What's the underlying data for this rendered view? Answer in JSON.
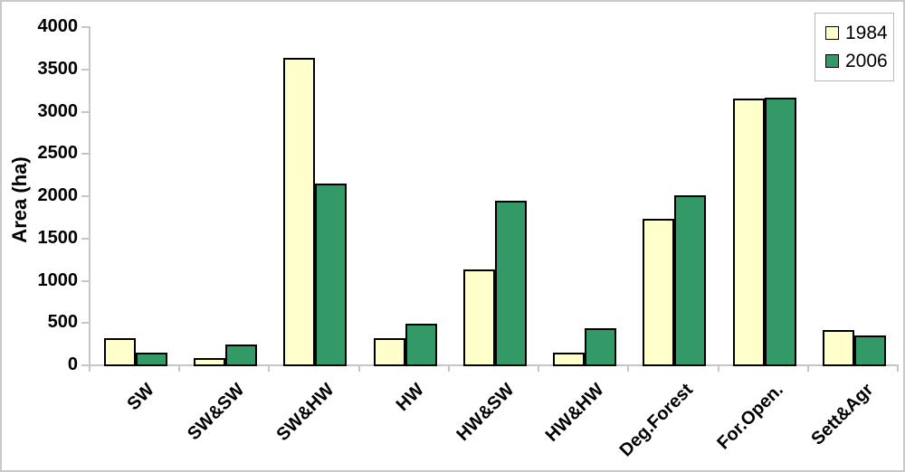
{
  "chart_data": {
    "type": "bar",
    "title": "",
    "xlabel": "",
    "ylabel": "Area (ha)",
    "ylim": [
      0,
      4000
    ],
    "ytick_step": 500,
    "grid": false,
    "legend_position": "top-right",
    "plot_background": "#ffffff",
    "categories": [
      "SW",
      "SW&SW",
      "SW&HW",
      "HW",
      "HW&SW",
      "HW&HW",
      "Deg.Forest",
      "For.Open.",
      "Sett&Agr"
    ],
    "series": [
      {
        "name": "1984",
        "color": "#FFFFCC",
        "values": [
          315,
          80,
          3630,
          310,
          1120,
          140,
          1725,
          3140,
          405
        ]
      },
      {
        "name": "2006",
        "color": "#339966",
        "values": [
          140,
          235,
          2140,
          480,
          1940,
          425,
          2000,
          3160,
          340
        ]
      }
    ]
  },
  "colors": {
    "bar_border": "#000000",
    "axis": "#c6c6c6",
    "frame": "#c9c9c9",
    "legend_border": "#b9b9b9",
    "background": "#ffffff"
  }
}
